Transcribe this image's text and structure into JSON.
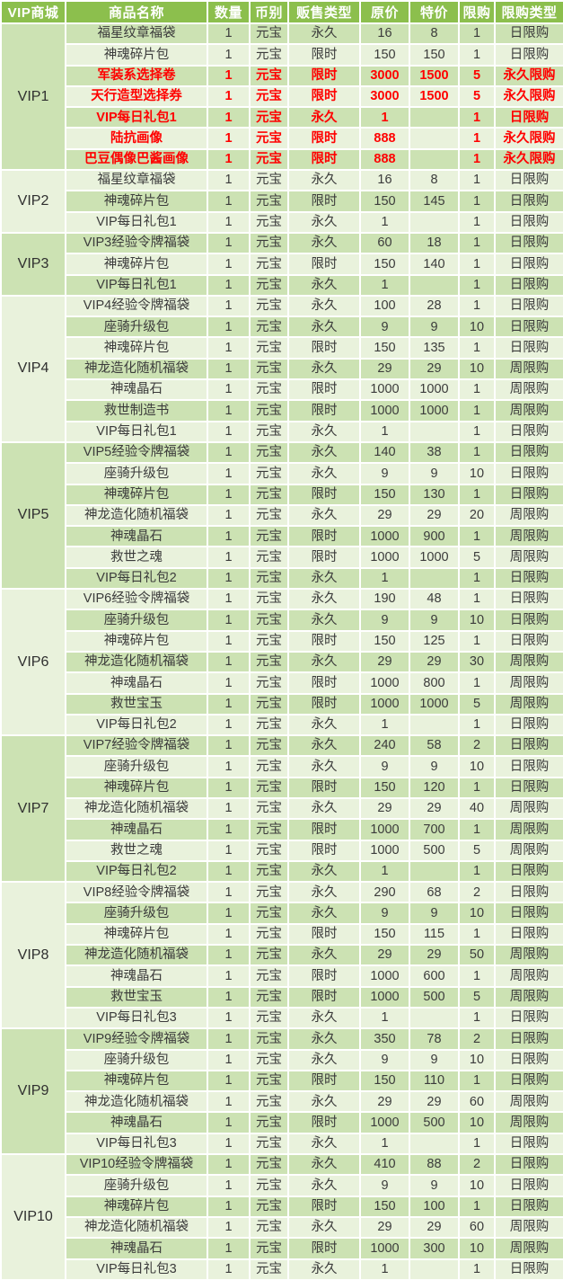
{
  "title": "VIP商城",
  "colors": {
    "header_bg": "#8CBF4D",
    "row_dark": "#CCE2B3",
    "row_light": "#E9F2DC",
    "highlight_text": "#FF0000",
    "text": "#3B3B3B",
    "header_text": "#FFFFFF"
  },
  "table": {
    "headers": [
      "VIP商城",
      "商品名称",
      "数量",
      "币别",
      "贩售类型",
      "原价",
      "特价",
      "限购",
      "限购类型"
    ],
    "sections": [
      {
        "vip": "VIP1",
        "rows": [
          {
            "name": "福星纹章福袋",
            "qty": "1",
            "currency": "元宝",
            "sale": "永久",
            "price": "16",
            "special": "8",
            "limit": "1",
            "limit_type": "日限购",
            "red": false
          },
          {
            "name": "神魂碎片包",
            "qty": "1",
            "currency": "元宝",
            "sale": "限时",
            "price": "150",
            "special": "150",
            "limit": "1",
            "limit_type": "日限购",
            "red": false
          },
          {
            "name": "军装系选择卷",
            "qty": "1",
            "currency": "元宝",
            "sale": "限时",
            "price": "3000",
            "special": "1500",
            "limit": "5",
            "limit_type": "永久限购",
            "red": true
          },
          {
            "name": "天行造型选择券",
            "qty": "1",
            "currency": "元宝",
            "sale": "限时",
            "price": "3000",
            "special": "1500",
            "limit": "5",
            "limit_type": "永久限购",
            "red": true
          },
          {
            "name": "VIP每日礼包1",
            "qty": "1",
            "currency": "元宝",
            "sale": "永久",
            "price": "1",
            "special": "",
            "limit": "1",
            "limit_type": "日限购",
            "red": true
          },
          {
            "name": "陆抗画像",
            "qty": "1",
            "currency": "元宝",
            "sale": "限时",
            "price": "888",
            "special": "",
            "limit": "1",
            "limit_type": "永久限购",
            "red": true
          },
          {
            "name": "巴豆偶像巴酱画像",
            "qty": "1",
            "currency": "元宝",
            "sale": "限时",
            "price": "888",
            "special": "",
            "limit": "1",
            "limit_type": "永久限购",
            "red": true
          }
        ]
      },
      {
        "vip": "VIP2",
        "rows": [
          {
            "name": "福星纹章福袋",
            "qty": "1",
            "currency": "元宝",
            "sale": "永久",
            "price": "16",
            "special": "8",
            "limit": "1",
            "limit_type": "日限购",
            "red": false
          },
          {
            "name": "神魂碎片包",
            "qty": "1",
            "currency": "元宝",
            "sale": "限时",
            "price": "150",
            "special": "145",
            "limit": "1",
            "limit_type": "日限购",
            "red": false
          },
          {
            "name": "VIP每日礼包1",
            "qty": "1",
            "currency": "元宝",
            "sale": "永久",
            "price": "1",
            "special": "",
            "limit": "1",
            "limit_type": "日限购",
            "red": false
          }
        ]
      },
      {
        "vip": "VIP3",
        "rows": [
          {
            "name": "VIP3经验令牌福袋",
            "qty": "1",
            "currency": "元宝",
            "sale": "永久",
            "price": "60",
            "special": "18",
            "limit": "1",
            "limit_type": "日限购",
            "red": false
          },
          {
            "name": "神魂碎片包",
            "qty": "1",
            "currency": "元宝",
            "sale": "限时",
            "price": "150",
            "special": "140",
            "limit": "1",
            "limit_type": "日限购",
            "red": false
          },
          {
            "name": "VIP每日礼包1",
            "qty": "1",
            "currency": "元宝",
            "sale": "永久",
            "price": "1",
            "special": "",
            "limit": "1",
            "limit_type": "日限购",
            "red": false
          }
        ]
      },
      {
        "vip": "VIP4",
        "rows": [
          {
            "name": "VIP4经验令牌福袋",
            "qty": "1",
            "currency": "元宝",
            "sale": "永久",
            "price": "100",
            "special": "28",
            "limit": "1",
            "limit_type": "日限购",
            "red": false
          },
          {
            "name": "座骑升级包",
            "qty": "1",
            "currency": "元宝",
            "sale": "永久",
            "price": "9",
            "special": "9",
            "limit": "10",
            "limit_type": "日限购",
            "red": false
          },
          {
            "name": "神魂碎片包",
            "qty": "1",
            "currency": "元宝",
            "sale": "限时",
            "price": "150",
            "special": "135",
            "limit": "1",
            "limit_type": "日限购",
            "red": false
          },
          {
            "name": "神龙造化随机福袋",
            "qty": "1",
            "currency": "元宝",
            "sale": "永久",
            "price": "29",
            "special": "29",
            "limit": "10",
            "limit_type": "周限购",
            "red": false
          },
          {
            "name": "神魂晶石",
            "qty": "1",
            "currency": "元宝",
            "sale": "限时",
            "price": "1000",
            "special": "1000",
            "limit": "1",
            "limit_type": "周限购",
            "red": false
          },
          {
            "name": "救世制造书",
            "qty": "1",
            "currency": "元宝",
            "sale": "限时",
            "price": "1000",
            "special": "1000",
            "limit": "1",
            "limit_type": "周限购",
            "red": false
          },
          {
            "name": "VIP每日礼包1",
            "qty": "1",
            "currency": "元宝",
            "sale": "永久",
            "price": "1",
            "special": "",
            "limit": "1",
            "limit_type": "日限购",
            "red": false
          }
        ]
      },
      {
        "vip": "VIP5",
        "rows": [
          {
            "name": "VIP5经验令牌福袋",
            "qty": "1",
            "currency": "元宝",
            "sale": "永久",
            "price": "140",
            "special": "38",
            "limit": "1",
            "limit_type": "日限购",
            "red": false
          },
          {
            "name": "座骑升级包",
            "qty": "1",
            "currency": "元宝",
            "sale": "永久",
            "price": "9",
            "special": "9",
            "limit": "10",
            "limit_type": "日限购",
            "red": false
          },
          {
            "name": "神魂碎片包",
            "qty": "1",
            "currency": "元宝",
            "sale": "限时",
            "price": "150",
            "special": "130",
            "limit": "1",
            "limit_type": "日限购",
            "red": false
          },
          {
            "name": "神龙造化随机福袋",
            "qty": "1",
            "currency": "元宝",
            "sale": "永久",
            "price": "29",
            "special": "29",
            "limit": "20",
            "limit_type": "周限购",
            "red": false
          },
          {
            "name": "神魂晶石",
            "qty": "1",
            "currency": "元宝",
            "sale": "限时",
            "price": "1000",
            "special": "900",
            "limit": "1",
            "limit_type": "周限购",
            "red": false
          },
          {
            "name": "救世之魂",
            "qty": "1",
            "currency": "元宝",
            "sale": "限时",
            "price": "1000",
            "special": "1000",
            "limit": "5",
            "limit_type": "周限购",
            "red": false
          },
          {
            "name": "VIP每日礼包2",
            "qty": "1",
            "currency": "元宝",
            "sale": "永久",
            "price": "1",
            "special": "",
            "limit": "1",
            "limit_type": "日限购",
            "red": false
          }
        ]
      },
      {
        "vip": "VIP6",
        "rows": [
          {
            "name": "VIP6经验令牌福袋",
            "qty": "1",
            "currency": "元宝",
            "sale": "永久",
            "price": "190",
            "special": "48",
            "limit": "1",
            "limit_type": "日限购",
            "red": false
          },
          {
            "name": "座骑升级包",
            "qty": "1",
            "currency": "元宝",
            "sale": "永久",
            "price": "9",
            "special": "9",
            "limit": "10",
            "limit_type": "日限购",
            "red": false
          },
          {
            "name": "神魂碎片包",
            "qty": "1",
            "currency": "元宝",
            "sale": "限时",
            "price": "150",
            "special": "125",
            "limit": "1",
            "limit_type": "日限购",
            "red": false
          },
          {
            "name": "神龙造化随机福袋",
            "qty": "1",
            "currency": "元宝",
            "sale": "永久",
            "price": "29",
            "special": "29",
            "limit": "30",
            "limit_type": "周限购",
            "red": false
          },
          {
            "name": "神魂晶石",
            "qty": "1",
            "currency": "元宝",
            "sale": "限时",
            "price": "1000",
            "special": "800",
            "limit": "1",
            "limit_type": "周限购",
            "red": false
          },
          {
            "name": "救世宝玉",
            "qty": "1",
            "currency": "元宝",
            "sale": "限时",
            "price": "1000",
            "special": "1000",
            "limit": "5",
            "limit_type": "周限购",
            "red": false
          },
          {
            "name": "VIP每日礼包2",
            "qty": "1",
            "currency": "元宝",
            "sale": "永久",
            "price": "1",
            "special": "",
            "limit": "1",
            "limit_type": "日限购",
            "red": false
          }
        ]
      },
      {
        "vip": "VIP7",
        "rows": [
          {
            "name": "VIP7经验令牌福袋",
            "qty": "1",
            "currency": "元宝",
            "sale": "永久",
            "price": "240",
            "special": "58",
            "limit": "2",
            "limit_type": "日限购",
            "red": false
          },
          {
            "name": "座骑升级包",
            "qty": "1",
            "currency": "元宝",
            "sale": "永久",
            "price": "9",
            "special": "9",
            "limit": "10",
            "limit_type": "日限购",
            "red": false
          },
          {
            "name": "神魂碎片包",
            "qty": "1",
            "currency": "元宝",
            "sale": "限时",
            "price": "150",
            "special": "120",
            "limit": "1",
            "limit_type": "日限购",
            "red": false
          },
          {
            "name": "神龙造化随机福袋",
            "qty": "1",
            "currency": "元宝",
            "sale": "永久",
            "price": "29",
            "special": "29",
            "limit": "40",
            "limit_type": "周限购",
            "red": false
          },
          {
            "name": "神魂晶石",
            "qty": "1",
            "currency": "元宝",
            "sale": "限时",
            "price": "1000",
            "special": "700",
            "limit": "1",
            "limit_type": "周限购",
            "red": false
          },
          {
            "name": "救世之魂",
            "qty": "1",
            "currency": "元宝",
            "sale": "限时",
            "price": "1000",
            "special": "500",
            "limit": "5",
            "limit_type": "周限购",
            "red": false
          },
          {
            "name": "VIP每日礼包2",
            "qty": "1",
            "currency": "元宝",
            "sale": "永久",
            "price": "1",
            "special": "",
            "limit": "1",
            "limit_type": "日限购",
            "red": false
          }
        ]
      },
      {
        "vip": "VIP8",
        "rows": [
          {
            "name": "VIP8经验令牌福袋",
            "qty": "1",
            "currency": "元宝",
            "sale": "永久",
            "price": "290",
            "special": "68",
            "limit": "2",
            "limit_type": "日限购",
            "red": false
          },
          {
            "name": "座骑升级包",
            "qty": "1",
            "currency": "元宝",
            "sale": "永久",
            "price": "9",
            "special": "9",
            "limit": "10",
            "limit_type": "日限购",
            "red": false
          },
          {
            "name": "神魂碎片包",
            "qty": "1",
            "currency": "元宝",
            "sale": "限时",
            "price": "150",
            "special": "115",
            "limit": "1",
            "limit_type": "日限购",
            "red": false
          },
          {
            "name": "神龙造化随机福袋",
            "qty": "1",
            "currency": "元宝",
            "sale": "永久",
            "price": "29",
            "special": "29",
            "limit": "50",
            "limit_type": "周限购",
            "red": false
          },
          {
            "name": "神魂晶石",
            "qty": "1",
            "currency": "元宝",
            "sale": "限时",
            "price": "1000",
            "special": "600",
            "limit": "1",
            "limit_type": "周限购",
            "red": false
          },
          {
            "name": "救世宝玉",
            "qty": "1",
            "currency": "元宝",
            "sale": "限时",
            "price": "1000",
            "special": "500",
            "limit": "5",
            "limit_type": "周限购",
            "red": false
          },
          {
            "name": "VIP每日礼包3",
            "qty": "1",
            "currency": "元宝",
            "sale": "永久",
            "price": "1",
            "special": "",
            "limit": "1",
            "limit_type": "日限购",
            "red": false
          }
        ]
      },
      {
        "vip": "VIP9",
        "rows": [
          {
            "name": "VIP9经验令牌福袋",
            "qty": "1",
            "currency": "元宝",
            "sale": "永久",
            "price": "350",
            "special": "78",
            "limit": "2",
            "limit_type": "日限购",
            "red": false
          },
          {
            "name": "座骑升级包",
            "qty": "1",
            "currency": "元宝",
            "sale": "永久",
            "price": "9",
            "special": "9",
            "limit": "10",
            "limit_type": "日限购",
            "red": false
          },
          {
            "name": "神魂碎片包",
            "qty": "1",
            "currency": "元宝",
            "sale": "限时",
            "price": "150",
            "special": "110",
            "limit": "1",
            "limit_type": "日限购",
            "red": false
          },
          {
            "name": "神龙造化随机福袋",
            "qty": "1",
            "currency": "元宝",
            "sale": "永久",
            "price": "29",
            "special": "29",
            "limit": "60",
            "limit_type": "周限购",
            "red": false
          },
          {
            "name": "神魂晶石",
            "qty": "1",
            "currency": "元宝",
            "sale": "限时",
            "price": "1000",
            "special": "500",
            "limit": "10",
            "limit_type": "周限购",
            "red": false
          },
          {
            "name": "VIP每日礼包3",
            "qty": "1",
            "currency": "元宝",
            "sale": "永久",
            "price": "1",
            "special": "",
            "limit": "1",
            "limit_type": "日限购",
            "red": false
          }
        ]
      },
      {
        "vip": "VIP10",
        "rows": [
          {
            "name": "VIP10经验令牌福袋",
            "qty": "1",
            "currency": "元宝",
            "sale": "永久",
            "price": "410",
            "special": "88",
            "limit": "2",
            "limit_type": "日限购",
            "red": false
          },
          {
            "name": "座骑升级包",
            "qty": "1",
            "currency": "元宝",
            "sale": "永久",
            "price": "9",
            "special": "9",
            "limit": "10",
            "limit_type": "日限购",
            "red": false
          },
          {
            "name": "神魂碎片包",
            "qty": "1",
            "currency": "元宝",
            "sale": "限时",
            "price": "150",
            "special": "100",
            "limit": "1",
            "limit_type": "日限购",
            "red": false
          },
          {
            "name": "神龙造化随机福袋",
            "qty": "1",
            "currency": "元宝",
            "sale": "永久",
            "price": "29",
            "special": "29",
            "limit": "60",
            "limit_type": "周限购",
            "red": false
          },
          {
            "name": "神魂晶石",
            "qty": "1",
            "currency": "元宝",
            "sale": "限时",
            "price": "1000",
            "special": "300",
            "limit": "10",
            "limit_type": "周限购",
            "red": false
          },
          {
            "name": "VIP每日礼包3",
            "qty": "1",
            "currency": "元宝",
            "sale": "永久",
            "price": "1",
            "special": "",
            "limit": "1",
            "limit_type": "日限购",
            "red": false
          }
        ]
      }
    ]
  }
}
